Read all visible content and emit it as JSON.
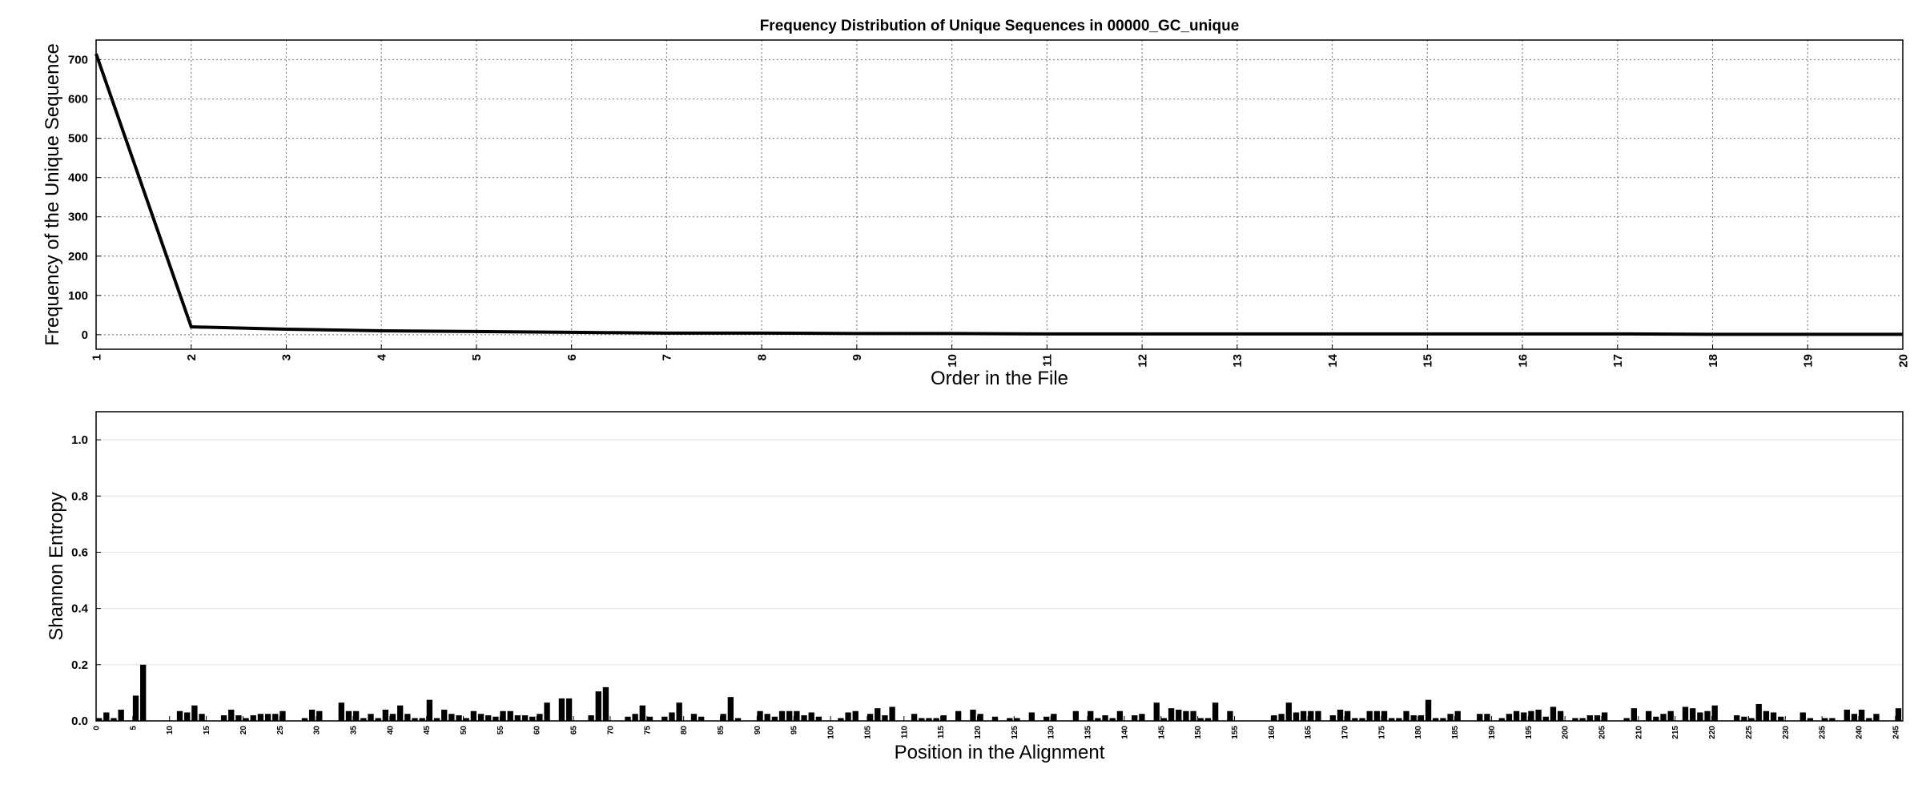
{
  "chart_data": [
    {
      "type": "line",
      "title": "Frequency Distribution of Unique Sequences in 00000_GC_unique",
      "xlabel": "Order in the File",
      "ylabel": "Frequency of the Unique Sequence",
      "x": [
        1,
        2,
        3,
        4,
        5,
        6,
        7,
        8,
        9,
        10,
        11,
        12,
        13,
        14,
        15,
        16,
        17,
        18,
        19,
        20
      ],
      "values": [
        715,
        20,
        14,
        10,
        8,
        6,
        4,
        4,
        3,
        3,
        2,
        2,
        2,
        2,
        2,
        2,
        2,
        1,
        1,
        1
      ],
      "color": "#000000",
      "xlim": [
        1,
        20
      ],
      "xticks": [
        1,
        2,
        3,
        4,
        5,
        6,
        7,
        8,
        9,
        10,
        11,
        12,
        13,
        14,
        15,
        16,
        17,
        18,
        19,
        20
      ],
      "ylim": [
        -37,
        750
      ],
      "yticks": [
        0,
        100,
        200,
        300,
        400,
        500,
        600,
        700
      ],
      "grid": true
    },
    {
      "type": "bar",
      "xlabel": "Position in the Alignment",
      "ylabel": "Shannon Entropy",
      "x": [
        0,
        1,
        2,
        3,
        4,
        5,
        6,
        7,
        8,
        9,
        10,
        11,
        12,
        13,
        14,
        15,
        16,
        17,
        18,
        19,
        20,
        21,
        22,
        23,
        24,
        25,
        26,
        27,
        28,
        29,
        30,
        31,
        32,
        33,
        34,
        35,
        36,
        37,
        38,
        39,
        40,
        41,
        42,
        43,
        44,
        45,
        46,
        47,
        48,
        49,
        50,
        51,
        52,
        53,
        54,
        55,
        56,
        57,
        58,
        59,
        60,
        61,
        62,
        63,
        64,
        65,
        66,
        67,
        68,
        69,
        70,
        71,
        72,
        73,
        74,
        75,
        76,
        77,
        78,
        79,
        80,
        81,
        82,
        83,
        84,
        85,
        86,
        87,
        88,
        89,
        90,
        91,
        92,
        93,
        94,
        95,
        96,
        97,
        98,
        99,
        100,
        101,
        102,
        103,
        104,
        105,
        106,
        107,
        108,
        109,
        110,
        111,
        112,
        113,
        114,
        115,
        116,
        117,
        118,
        119,
        120,
        121,
        122,
        123,
        124,
        125,
        126,
        127,
        128,
        129,
        130,
        131,
        132,
        133,
        134,
        135,
        136,
        137,
        138,
        139,
        140,
        141,
        142,
        143,
        144,
        145,
        146,
        147,
        148,
        149,
        150,
        151,
        152,
        153,
        154,
        155,
        156,
        157,
        158,
        159,
        160,
        161,
        162,
        163,
        164,
        165,
        166,
        167,
        168,
        169,
        170,
        171,
        172,
        173,
        174,
        175,
        176,
        177,
        178,
        179,
        180,
        181,
        182,
        183,
        184,
        185,
        186,
        187,
        188,
        189,
        190,
        191,
        192,
        193,
        194,
        195,
        196,
        197,
        198,
        199,
        200,
        201,
        202,
        203,
        204,
        205,
        206,
        207,
        208,
        209,
        210,
        211,
        212,
        213,
        214,
        215,
        216,
        217,
        218,
        219,
        220,
        221,
        222,
        223,
        224,
        225,
        226,
        227,
        228,
        229,
        230,
        231,
        232,
        233,
        234,
        235,
        236,
        237,
        238,
        239,
        240,
        241,
        242,
        243,
        244,
        245
      ],
      "values": [
        0.01,
        0.03,
        0.01,
        0.04,
        0,
        0.09,
        0.2,
        0,
        0,
        0,
        0,
        0.035,
        0.03,
        0.055,
        0.025,
        0,
        0,
        0.02,
        0.04,
        0.02,
        0.01,
        0.02,
        0.025,
        0.025,
        0.025,
        0.035,
        0,
        0,
        0.01,
        0.04,
        0.035,
        0,
        0,
        0.065,
        0.035,
        0.035,
        0.01,
        0.025,
        0.01,
        0.04,
        0.025,
        0.055,
        0.025,
        0.01,
        0.01,
        0.075,
        0.01,
        0.04,
        0.025,
        0.02,
        0.01,
        0.035,
        0.025,
        0.02,
        0.015,
        0.035,
        0.035,
        0.02,
        0.02,
        0.015,
        0.025,
        0.065,
        0,
        0.08,
        0.08,
        0,
        0,
        0.02,
        0.105,
        0.12,
        0,
        0,
        0.015,
        0.025,
        0.055,
        0.015,
        0,
        0.015,
        0.03,
        0.065,
        0,
        0.025,
        0.015,
        0,
        0,
        0.025,
        0.085,
        0.01,
        0,
        0,
        0.035,
        0.025,
        0.015,
        0.035,
        0.035,
        0.035,
        0.02,
        0.03,
        0.015,
        0,
        0,
        0.01,
        0.03,
        0.035,
        0,
        0.025,
        0.045,
        0.02,
        0.05,
        0,
        0,
        0.025,
        0.01,
        0.01,
        0.01,
        0.02,
        0,
        0.035,
        0,
        0.04,
        0.025,
        0,
        0.015,
        0,
        0.01,
        0.01,
        0,
        0.03,
        0,
        0.015,
        0.025,
        0,
        0,
        0.035,
        0,
        0.035,
        0.01,
        0.02,
        0.01,
        0.035,
        0,
        0.02,
        0.025,
        0,
        0.065,
        0.01,
        0.045,
        0.04,
        0.035,
        0.035,
        0.01,
        0.01,
        0.065,
        0,
        0.035,
        0,
        0,
        0,
        0,
        0,
        0.02,
        0.025,
        0.065,
        0.03,
        0.035,
        0.035,
        0.035,
        0,
        0.02,
        0.04,
        0.035,
        0.01,
        0.01,
        0.035,
        0.035,
        0.035,
        0.01,
        0.01,
        0.035,
        0.02,
        0.02,
        0.075,
        0.01,
        0.01,
        0.025,
        0.035,
        0,
        0,
        0.025,
        0.025,
        0,
        0.01,
        0.025,
        0.035,
        0.03,
        0.035,
        0.04,
        0.015,
        0.05,
        0.035,
        0,
        0.01,
        0.01,
        0.02,
        0.02,
        0.03,
        0,
        0,
        0.01,
        0.045,
        0,
        0.035,
        0.015,
        0.025,
        0.035,
        0,
        0.05,
        0.045,
        0.03,
        0.035,
        0.055,
        0,
        0,
        0.02,
        0.015,
        0.01,
        0.06,
        0.035,
        0.03,
        0.015,
        0,
        0,
        0.03,
        0.01,
        0,
        0.01,
        0.01,
        0,
        0.04,
        0.025,
        0.04,
        0.01,
        0.025,
        0,
        0,
        0.045
      ],
      "color": "#000000",
      "xlim": [
        0,
        246
      ],
      "xticks": [
        0,
        5,
        10,
        15,
        20,
        25,
        30,
        35,
        40,
        45,
        50,
        55,
        60,
        65,
        70,
        75,
        80,
        85,
        90,
        95,
        100,
        105,
        110,
        115,
        120,
        125,
        130,
        135,
        140,
        145,
        150,
        155,
        160,
        165,
        170,
        175,
        180,
        185,
        190,
        195,
        200,
        205,
        210,
        215,
        220,
        225,
        230,
        235,
        240,
        245
      ],
      "ylim": [
        0,
        1.1
      ],
      "yticks": [
        {
          "value": 0,
          "label": "0.0"
        },
        {
          "value": 0.2,
          "label": "0.2"
        },
        {
          "value": 0.4,
          "label": "0.4"
        },
        {
          "value": 0.6,
          "label": "0.6"
        },
        {
          "value": 0.8,
          "label": "0.8"
        },
        {
          "value": 1,
          "label": "1.0"
        }
      ],
      "grid": true
    }
  ]
}
